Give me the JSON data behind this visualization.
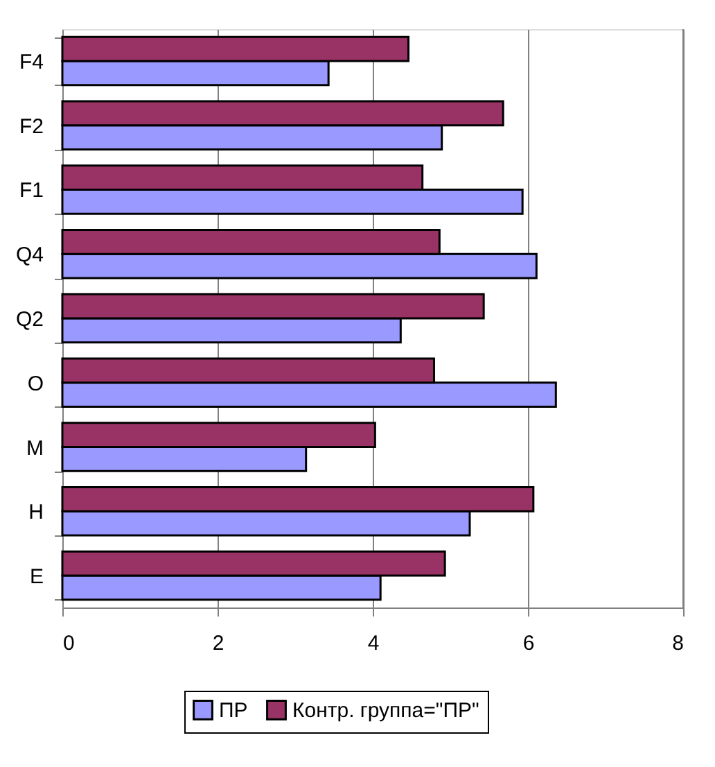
{
  "chart_data": {
    "type": "bar",
    "orientation": "horizontal",
    "categories": [
      "F4",
      "F2",
      "F1",
      "Q4",
      "Q2",
      "O",
      "M",
      "H",
      "E"
    ],
    "series": [
      {
        "name": "ПР",
        "color": "#9999ff",
        "values": [
          3.43,
          4.89,
          5.93,
          6.11,
          4.36,
          6.36,
          3.14,
          5.25,
          4.1
        ]
      },
      {
        "name": "Контр. группа=\"ПР\"",
        "color": "#993366",
        "values": [
          4.46,
          5.68,
          4.64,
          4.86,
          5.43,
          4.79,
          4.03,
          6.07,
          4.93
        ]
      }
    ],
    "xlim": [
      0,
      8
    ],
    "xticks": [
      0,
      2,
      4,
      6,
      8
    ],
    "grid": "x",
    "legend": "bottom"
  }
}
